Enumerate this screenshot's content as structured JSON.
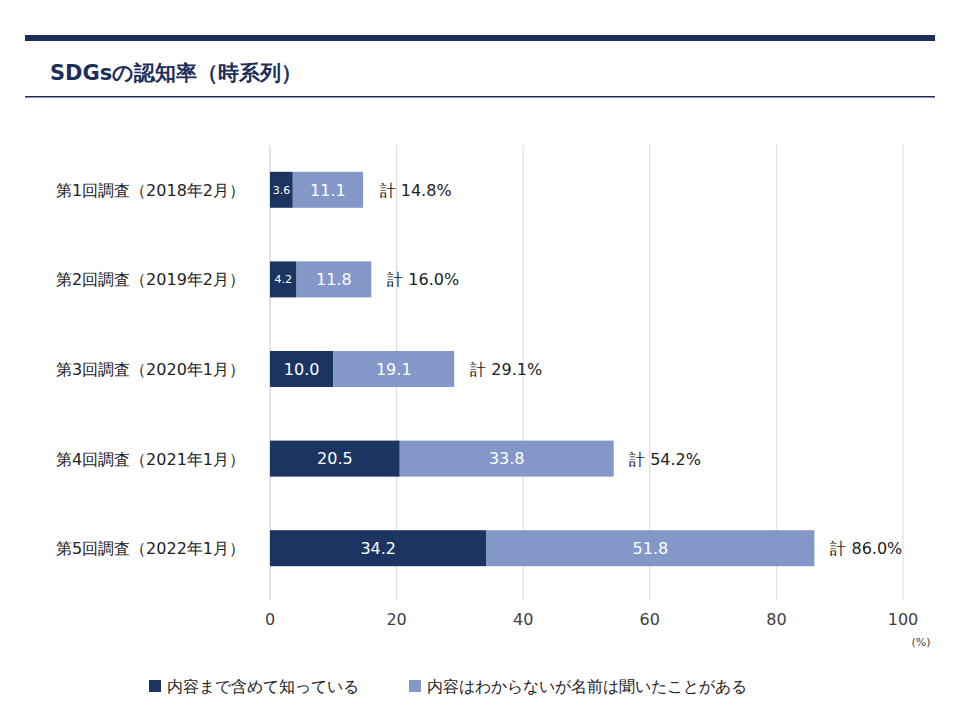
{
  "chart_data": {
    "type": "bar",
    "title": "SDGsの認知率（時系列）",
    "orientation": "horizontal",
    "stacked": true,
    "data_labels": true,
    "grid": true,
    "legend": "bottom",
    "x_label": "(%)",
    "categories": [
      "第1回調査（2018年2月）",
      "第2回調査（2019年2月）",
      "第3回調査（2020年1月）",
      "第4回調査（2021年1月）",
      "第5回調査（2022年1月）"
    ],
    "series": [
      {
        "name": "内容まで含めて知っている",
        "color": "#1c3461",
        "values": [
          3.6,
          4.2,
          10.0,
          20.5,
          34.2
        ],
        "value_labels": [
          "3.6",
          "4.2",
          "10.0",
          "20.5",
          "34.2"
        ]
      },
      {
        "name": "内容はわからないが名前は聞いたことがある",
        "color": "#8497c9",
        "values": [
          11.1,
          11.8,
          19.1,
          33.8,
          51.8
        ],
        "value_labels": [
          "11.1",
          "11.8",
          "19.1",
          "33.8",
          "51.8"
        ]
      }
    ],
    "totals": [
      14.8,
      16.0,
      29.1,
      54.2,
      86.0
    ],
    "total_labels": [
      "計 14.8%",
      "計 16.0%",
      "計 29.1%",
      "計 54.2%",
      "計 86.0%"
    ],
    "xlim": [
      0,
      100
    ],
    "xticks": [
      0,
      20,
      40,
      60,
      80,
      100
    ]
  }
}
